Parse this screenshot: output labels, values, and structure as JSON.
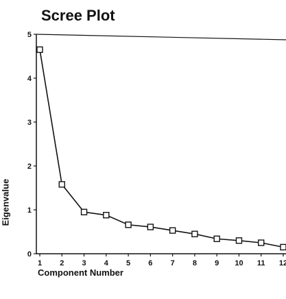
{
  "chart_data": {
    "type": "line",
    "title": "Scree Plot",
    "xlabel": "Component Number",
    "ylabel": "Eigenvalue",
    "x": [
      1,
      2,
      3,
      4,
      5,
      6,
      7,
      8,
      9,
      10,
      11,
      12
    ],
    "series": [
      {
        "values": [
          4.65,
          1.58,
          0.95,
          0.88,
          0.66,
          0.61,
          0.53,
          0.45,
          0.34,
          0.3,
          0.25,
          0.15
        ]
      }
    ],
    "xticks": [
      "1",
      "2",
      "3",
      "4",
      "5",
      "6",
      "7",
      "8",
      "9",
      "10",
      "11",
      "12"
    ],
    "yticks": [
      "0",
      "1",
      "2",
      "3",
      "4",
      "5"
    ],
    "xlim": [
      1,
      12
    ],
    "ylim": [
      0,
      5
    ],
    "marker": "open-square",
    "grid": false,
    "line_color": "#111111"
  }
}
